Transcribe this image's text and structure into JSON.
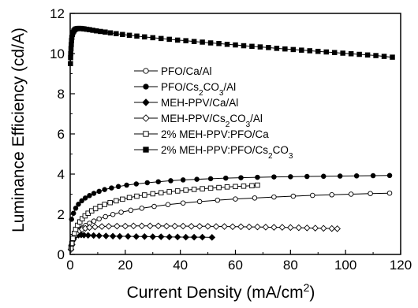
{
  "chart_data": {
    "type": "scatter",
    "title": "",
    "xlabel": "Current Density (mA/cm²)",
    "ylabel": "Luminance Efficiency (cd/A)",
    "xlim": [
      0,
      120
    ],
    "ylim": [
      0,
      12
    ],
    "x_ticks": [
      "0",
      "20",
      "40",
      "60",
      "80",
      "100",
      "120"
    ],
    "y_ticks": [
      "0",
      "2",
      "4",
      "6",
      "8",
      "10",
      "12"
    ],
    "grid": false,
    "legend_position": "center",
    "series": [
      {
        "name": "PFO/Ca/Al",
        "marker": "circle-open",
        "x": [
          0.3,
          0.6,
          1,
          1.5,
          2,
          2.7,
          3.5,
          4.5,
          5.6,
          7,
          8.6,
          10.5,
          12.8,
          15.5,
          18.5,
          22,
          26,
          30.5,
          35.5,
          41,
          47,
          53.5,
          60,
          67,
          74,
          81,
          88,
          95,
          102,
          109,
          116
        ],
        "y": [
          0.3,
          0.5,
          0.7,
          0.85,
          0.98,
          1.1,
          1.22,
          1.33,
          1.44,
          1.55,
          1.66,
          1.77,
          1.88,
          1.99,
          2.1,
          2.2,
          2.3,
          2.39,
          2.48,
          2.56,
          2.63,
          2.7,
          2.76,
          2.81,
          2.86,
          2.9,
          2.94,
          2.97,
          3.0,
          3.03,
          3.05
        ]
      },
      {
        "name": "PFO/Cs2CO3/Al",
        "marker": "circle-filled",
        "x": [
          0.5,
          1.2,
          2,
          3,
          4.2,
          5.5,
          7,
          8.6,
          10.5,
          12.5,
          15,
          17.5,
          20.5,
          24,
          28,
          32,
          36.5,
          41,
          46,
          51,
          56.5,
          62,
          68,
          74,
          80,
          86,
          92,
          98,
          104,
          110,
          116
        ],
        "y": [
          1.75,
          2.05,
          2.3,
          2.5,
          2.67,
          2.81,
          2.93,
          3.04,
          3.14,
          3.23,
          3.31,
          3.38,
          3.45,
          3.51,
          3.57,
          3.62,
          3.67,
          3.71,
          3.74,
          3.77,
          3.8,
          3.82,
          3.84,
          3.86,
          3.87,
          3.88,
          3.89,
          3.9,
          3.91,
          3.92,
          3.93
        ]
      },
      {
        "name": "MEH-PPV/Ca/Al",
        "marker": "diamond-filled",
        "x": [
          0.5,
          1,
          1.5,
          2,
          3,
          4,
          5,
          6.5,
          8.5,
          10.5,
          13,
          15.5,
          18,
          21,
          24,
          27,
          30,
          33,
          36,
          39,
          42,
          45,
          48,
          51.5
        ],
        "y": [
          0.45,
          0.72,
          0.86,
          0.93,
          0.96,
          0.97,
          0.96,
          0.95,
          0.94,
          0.93,
          0.92,
          0.91,
          0.9,
          0.9,
          0.89,
          0.89,
          0.88,
          0.88,
          0.87,
          0.87,
          0.86,
          0.86,
          0.86,
          0.85
        ]
      },
      {
        "name": "MEH-PPV/Cs2CO3/Al",
        "marker": "diamond-open",
        "x": [
          0.3,
          0.7,
          1.2,
          1.8,
          2.5,
          3.3,
          4.3,
          5.5,
          7,
          9,
          11.5,
          14,
          17,
          20,
          23,
          26,
          29,
          32,
          35,
          38,
          41,
          44,
          47,
          50,
          53,
          56,
          59,
          62,
          65,
          68,
          71,
          74,
          77,
          80,
          83,
          86,
          89,
          92,
          95,
          97
        ],
        "y": [
          0.25,
          0.5,
          0.75,
          0.95,
          1.08,
          1.18,
          1.25,
          1.3,
          1.34,
          1.37,
          1.39,
          1.4,
          1.41,
          1.41,
          1.42,
          1.42,
          1.42,
          1.42,
          1.41,
          1.41,
          1.41,
          1.4,
          1.4,
          1.4,
          1.39,
          1.39,
          1.38,
          1.38,
          1.37,
          1.37,
          1.36,
          1.35,
          1.35,
          1.34,
          1.33,
          1.32,
          1.31,
          1.3,
          1.29,
          1.28
        ]
      },
      {
        "name": "2% MEH-PPV:PFO/Ca",
        "marker": "square-open",
        "x": [
          0.3,
          0.6,
          1,
          1.5,
          2,
          2.7,
          3.5,
          4.4,
          5.4,
          6.5,
          7.8,
          9.2,
          10.8,
          12.5,
          14.5,
          16.7,
          19,
          21.5,
          24.2,
          27,
          30,
          33,
          36,
          39,
          42,
          45,
          48,
          51,
          54,
          57,
          60,
          63,
          66,
          68
        ],
        "y": [
          0.3,
          0.55,
          0.8,
          1.05,
          1.25,
          1.45,
          1.62,
          1.78,
          1.92,
          2.05,
          2.17,
          2.28,
          2.39,
          2.49,
          2.58,
          2.67,
          2.75,
          2.83,
          2.9,
          2.96,
          3.02,
          3.07,
          3.12,
          3.16,
          3.2,
          3.24,
          3.27,
          3.3,
          3.33,
          3.36,
          3.38,
          3.4,
          3.42,
          3.45
        ]
      },
      {
        "name": "2% MEH-PPV:PFO/Cs2CO3",
        "marker": "square-filled",
        "x": [
          0.1,
          0.15,
          0.2,
          0.3,
          0.4,
          0.5,
          0.6,
          0.8,
          1,
          1.3,
          1.6,
          2,
          2.5,
          3,
          3.6,
          4.3,
          5,
          6,
          7,
          8.2,
          9.5,
          11,
          12.7,
          14.6,
          16.7,
          19,
          21.5,
          24.2,
          27,
          30,
          33,
          36,
          39,
          42,
          45,
          48,
          51,
          54,
          57,
          60,
          63,
          66,
          69,
          72,
          75,
          78,
          81,
          84,
          87,
          90,
          93,
          96,
          99,
          102,
          105,
          108,
          111,
          114,
          117
        ],
        "y": [
          9.5,
          9.8,
          10.0,
          10.25,
          10.45,
          10.65,
          10.8,
          10.95,
          11.05,
          11.12,
          11.18,
          11.22,
          11.24,
          11.25,
          11.25,
          11.24,
          11.23,
          11.21,
          11.19,
          11.16,
          11.13,
          11.1,
          11.07,
          11.03,
          10.99,
          10.95,
          10.91,
          10.87,
          10.83,
          10.79,
          10.75,
          10.71,
          10.67,
          10.64,
          10.6,
          10.57,
          10.53,
          10.5,
          10.46,
          10.43,
          10.39,
          10.36,
          10.33,
          10.3,
          10.26,
          10.23,
          10.2,
          10.17,
          10.14,
          10.11,
          10.08,
          10.05,
          10.02,
          9.99,
          9.96,
          9.93,
          9.9,
          9.86,
          9.82
        ]
      }
    ]
  }
}
